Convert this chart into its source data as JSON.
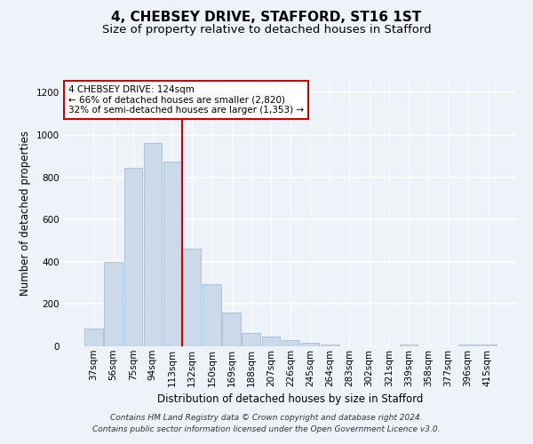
{
  "title": "4, CHEBSEY DRIVE, STAFFORD, ST16 1ST",
  "subtitle": "Size of property relative to detached houses in Stafford",
  "xlabel": "Distribution of detached houses by size in Stafford",
  "ylabel": "Number of detached properties",
  "categories": [
    "37sqm",
    "56sqm",
    "75sqm",
    "94sqm",
    "113sqm",
    "132sqm",
    "150sqm",
    "169sqm",
    "188sqm",
    "207sqm",
    "226sqm",
    "245sqm",
    "264sqm",
    "283sqm",
    "302sqm",
    "321sqm",
    "339sqm",
    "358sqm",
    "377sqm",
    "396sqm",
    "415sqm"
  ],
  "values": [
    85,
    400,
    845,
    960,
    875,
    460,
    295,
    160,
    65,
    47,
    28,
    18,
    10,
    0,
    0,
    0,
    10,
    0,
    0,
    10,
    10
  ],
  "bar_color": "#ccd9ea",
  "bar_edgecolor": "#9ab4cc",
  "vline_color": "#cc0000",
  "annotation_text": "4 CHEBSEY DRIVE: 124sqm\n← 66% of detached houses are smaller (2,820)\n32% of semi-detached houses are larger (1,353) →",
  "annotation_box_color": "#ffffff",
  "annotation_box_edgecolor": "#cc0000",
  "ylim": [
    0,
    1260
  ],
  "yticks": [
    0,
    200,
    400,
    600,
    800,
    1000,
    1200
  ],
  "background_color": "#eef2f9",
  "grid_color": "#ffffff",
  "footnote": "Contains HM Land Registry data © Crown copyright and database right 2024.\nContains public sector information licensed under the Open Government Licence v3.0.",
  "title_fontsize": 11,
  "subtitle_fontsize": 9.5,
  "xlabel_fontsize": 8.5,
  "ylabel_fontsize": 8.5,
  "annotation_fontsize": 7.5,
  "footnote_fontsize": 6.5,
  "tick_fontsize": 7.5
}
